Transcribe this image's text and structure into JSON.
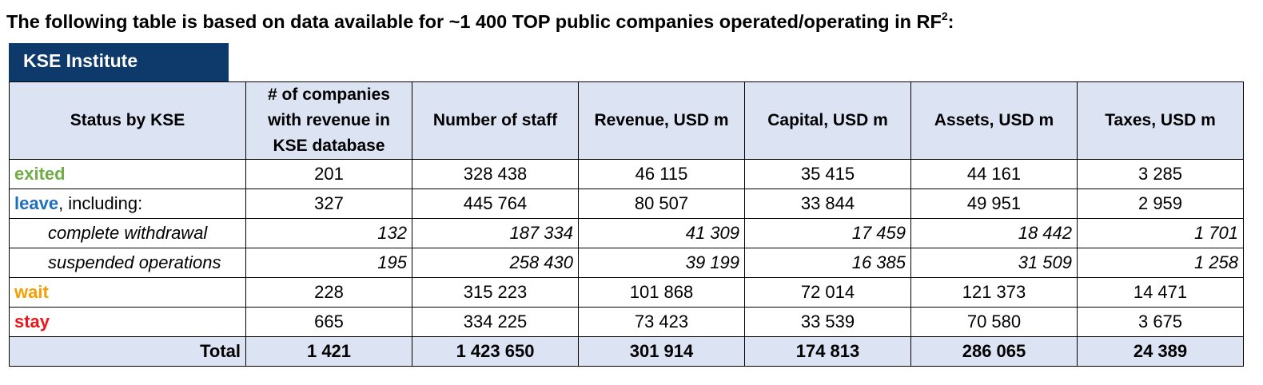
{
  "headline": {
    "text": "The following table is based on data available for ~1 400 TOP public companies operated/operating in RF",
    "sup": "2",
    "suffix": ":"
  },
  "badge": "KSE Institute",
  "colors": {
    "exited": "#70ad47",
    "leave": "#1f6fbf",
    "wait": "#f59f00",
    "stay": "#e8171c",
    "header_bg": "#dce3f3",
    "badge_bg": "#0d3a6b"
  },
  "table": {
    "headers": {
      "status": "Status by KSE",
      "companies_l1": "# of companies",
      "companies_l2": "with revenue in",
      "companies_l3": "KSE database",
      "staff": "Number of staff",
      "revenue": "Revenue, USD m",
      "capital": "Capital, USD m",
      "assets": "Assets, USD m",
      "taxes": "Taxes, USD m"
    },
    "rows": {
      "exited": {
        "status": "exited",
        "suffix": "",
        "values": [
          "201",
          "328 438",
          "46 115",
          "35 415",
          "44 161",
          "3 285"
        ]
      },
      "leave": {
        "status": "leave",
        "suffix": ", including:",
        "values": [
          "327",
          "445 764",
          "80 507",
          "33 844",
          "49 951",
          "2 959"
        ]
      },
      "complete": {
        "status": "complete withdrawal",
        "values": [
          "132",
          "187 334",
          "41 309",
          "17 459",
          "18 442",
          "1 701"
        ]
      },
      "suspended": {
        "status": "suspended operations",
        "values": [
          "195",
          "258 430",
          "39 199",
          "16 385",
          "31 509",
          "1 258"
        ]
      },
      "wait": {
        "status": "wait",
        "suffix": "",
        "values": [
          "228",
          "315 223",
          "101 868",
          "72 014",
          "121 373",
          "14 471"
        ]
      },
      "stay": {
        "status": "stay",
        "suffix": "",
        "values": [
          "665",
          "334 225",
          "73 423",
          "33 539",
          "70 580",
          "3 675"
        ]
      }
    },
    "total": {
      "label": "Total",
      "values": [
        "1 421",
        "1 423 650",
        "301 914",
        "174 813",
        "286 065",
        "24 389"
      ]
    }
  }
}
